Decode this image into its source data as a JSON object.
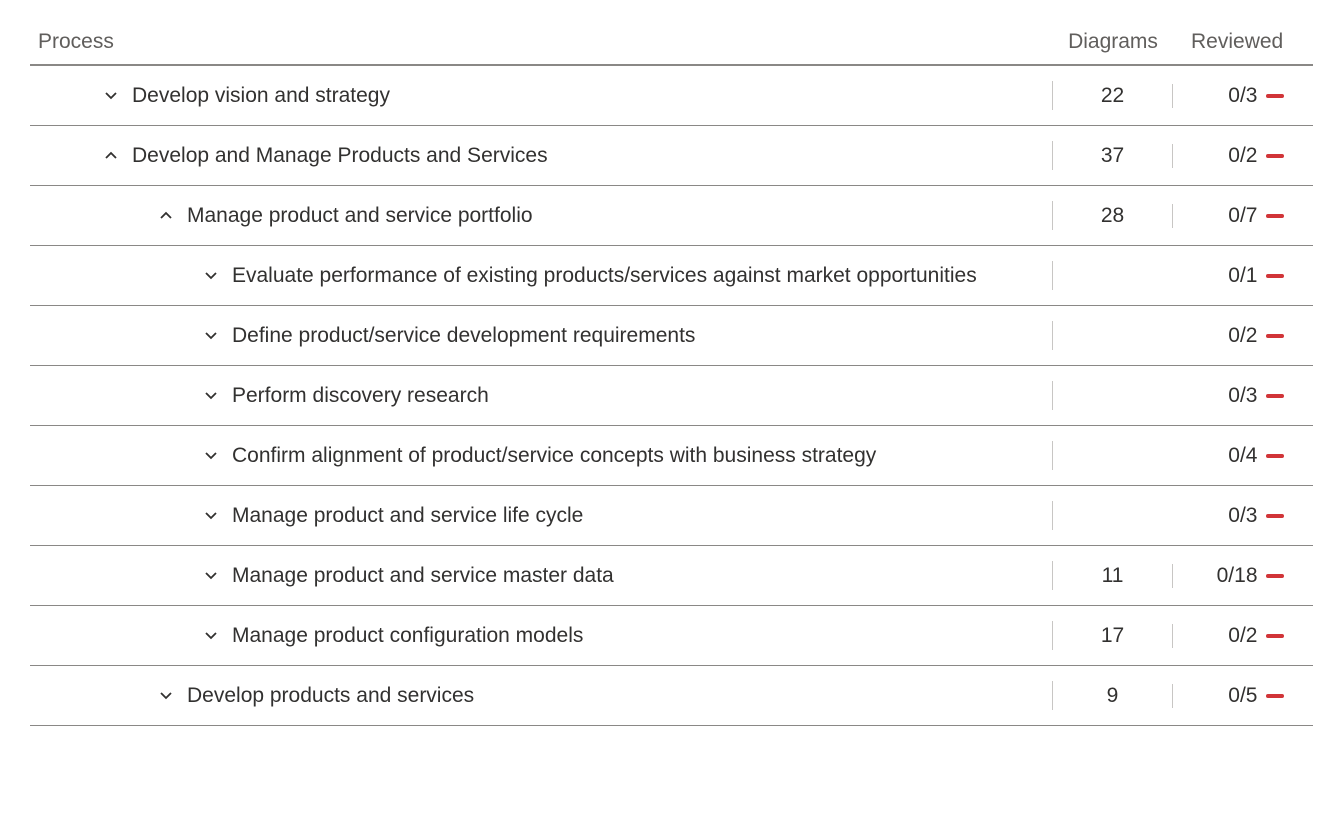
{
  "columns": {
    "process": "Process",
    "diagrams": "Diagrams",
    "reviewed": "Reviewed"
  },
  "rows": [
    {
      "indent": 0,
      "expanded": false,
      "label": "Develop vision and strategy",
      "diagrams": "22",
      "reviewed": "0/3",
      "status": "dash"
    },
    {
      "indent": 0,
      "expanded": true,
      "label": "Develop and Manage Products and Services",
      "diagrams": "37",
      "reviewed": "0/2",
      "status": "dash"
    },
    {
      "indent": 1,
      "expanded": true,
      "label": "Manage product and service portfolio",
      "diagrams": "28",
      "reviewed": "0/7",
      "status": "dash"
    },
    {
      "indent": 2,
      "expanded": false,
      "label": "Evaluate performance of existing products/services against market opportunities",
      "diagrams": "",
      "reviewed": "0/1",
      "status": "dash"
    },
    {
      "indent": 2,
      "expanded": false,
      "label": "Define product/service development requirements",
      "diagrams": "",
      "reviewed": "0/2",
      "status": "dash"
    },
    {
      "indent": 2,
      "expanded": false,
      "label": "Perform discovery research",
      "diagrams": "",
      "reviewed": "0/3",
      "status": "dash"
    },
    {
      "indent": 2,
      "expanded": false,
      "label": "Confirm alignment of product/service concepts with business strategy",
      "diagrams": "",
      "reviewed": "0/4",
      "status": "dash"
    },
    {
      "indent": 2,
      "expanded": false,
      "label": "Manage product and service life cycle",
      "diagrams": "",
      "reviewed": "0/3",
      "status": "dash"
    },
    {
      "indent": 2,
      "expanded": false,
      "label": "Manage product and service master data",
      "diagrams": "11",
      "reviewed": "0/18",
      "status": "dash"
    },
    {
      "indent": 2,
      "expanded": false,
      "label": "Manage product configuration models",
      "diagrams": "17",
      "reviewed": "0/2",
      "status": "dash"
    },
    {
      "indent": 1,
      "expanded": false,
      "label": "Develop products and services",
      "diagrams": "9",
      "reviewed": "0/5",
      "status": "dash"
    }
  ],
  "colors": {
    "status_dash": "#d13438",
    "border": "#8a8886",
    "text": "#323130",
    "header_text": "#605e5c"
  }
}
